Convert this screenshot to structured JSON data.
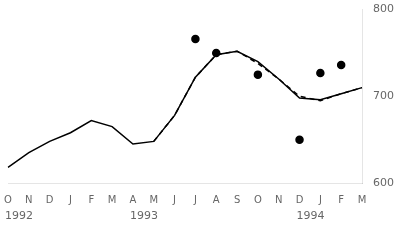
{
  "chart_data": {
    "type": "line",
    "categories": [
      "O",
      "N",
      "D",
      "J",
      "F",
      "M",
      "A",
      "M",
      "J",
      "J",
      "A",
      "S",
      "O",
      "N",
      "D",
      "J",
      "F",
      "M"
    ],
    "series": [
      {
        "color": "#000000",
        "line_style": "solid",
        "marker": "none",
        "values": [
          618,
          635,
          648,
          658,
          672,
          665,
          645,
          648,
          678,
          722,
          748,
          752,
          740,
          720,
          698,
          696,
          703,
          710
        ]
      },
      {
        "color": "#000000",
        "line_style": "dashed",
        "marker": "none",
        "values": [
          null,
          null,
          null,
          null,
          null,
          null,
          null,
          648,
          678,
          722,
          748,
          752,
          738,
          720,
          700,
          695,
          703,
          710
        ]
      },
      {
        "type": "scatter",
        "color": "#000000",
        "line_style": "none",
        "marker": "o",
        "values": [
          null,
          null,
          null,
          null,
          null,
          null,
          null,
          null,
          null,
          766,
          750,
          null,
          725,
          null,
          650,
          727,
          736,
          null
        ]
      }
    ],
    "annotations": [
      {
        "text": "1992",
        "x": 0
      },
      {
        "text": "1993",
        "x": 6
      },
      {
        "text": "1994",
        "x": 14
      }
    ],
    "ylim": [
      600,
      800
    ],
    "yticks": [
      600,
      700,
      800
    ],
    "grid": false
  }
}
